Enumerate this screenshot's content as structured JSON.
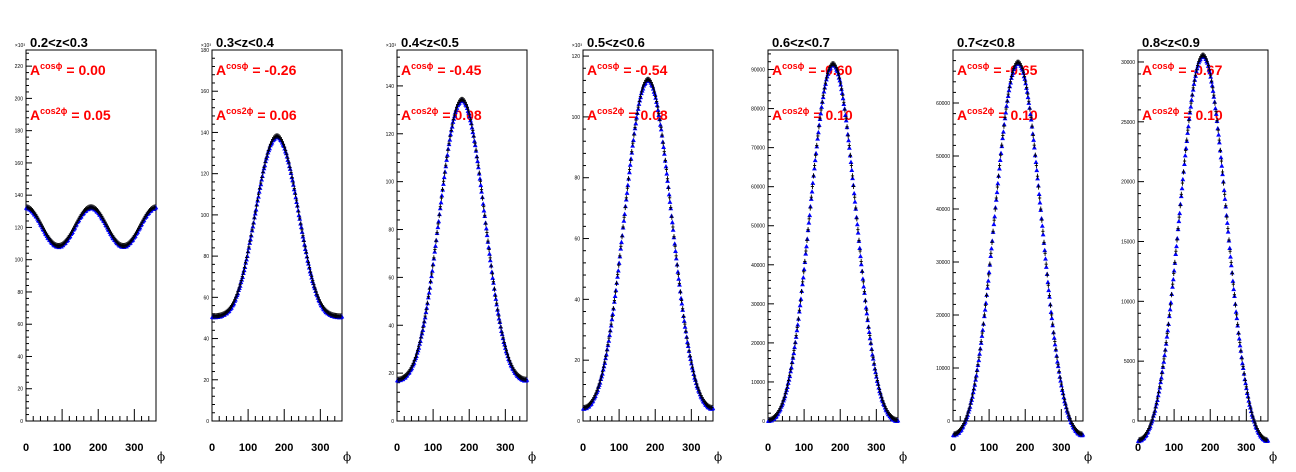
{
  "chart_data": [
    {
      "type": "scatter",
      "title": "0.2<z<0.3",
      "xlabel": "ϕ",
      "xlim": [
        0,
        360
      ],
      "xticks": [
        "0",
        "100",
        "200",
        "300"
      ],
      "ylim": [
        0,
        230
      ],
      "yticks": [
        "0",
        "20",
        "40",
        "60",
        "80",
        "100",
        "120",
        "140",
        "160",
        "180",
        "200",
        "220"
      ],
      "y_multiplier": "×10³",
      "annotations": [
        {
          "name": "A",
          "sup": "cosϕ",
          "value": "= 0.00"
        },
        {
          "name": "A",
          "sup": "cos2ϕ",
          "value": "= 0.05"
        }
      ],
      "model": {
        "baseline": 120,
        "a_cos": 0.0,
        "a_cos2": 0.05
      },
      "series": [
        {
          "name": "",
          "color": "#0000ff",
          "marker": "triangle"
        },
        {
          "name": "",
          "color": "#000000",
          "marker": "cross"
        }
      ]
    },
    {
      "type": "scatter",
      "title": "0.3<z<0.4",
      "xlabel": "ϕ",
      "xlim": [
        0,
        360
      ],
      "xticks": [
        "0",
        "100",
        "200",
        "300"
      ],
      "ylim": [
        0,
        180
      ],
      "yticks": [
        "0",
        "20",
        "40",
        "60",
        "80",
        "100",
        "120",
        "140",
        "160",
        "180"
      ],
      "y_multiplier": "×10³",
      "annotations": [
        {
          "name": "A",
          "sup": "cosϕ",
          "value": "= -0.26"
        },
        {
          "name": "A",
          "sup": "cos2ϕ",
          "value": "= 0.06"
        }
      ],
      "model": {
        "baseline": 84,
        "a_cos": -0.26,
        "a_cos2": 0.06
      },
      "series": [
        {
          "name": "",
          "color": "#0000ff",
          "marker": "triangle"
        },
        {
          "name": "",
          "color": "#000000",
          "marker": "cross"
        }
      ]
    },
    {
      "type": "scatter",
      "title": "0.4<z<0.5",
      "xlabel": "ϕ",
      "xlim": [
        0,
        360
      ],
      "xticks": [
        "0",
        "100",
        "200",
        "300"
      ],
      "ylim": [
        0,
        155
      ],
      "yticks": [
        "0",
        "20",
        "40",
        "60",
        "80",
        "100",
        "120",
        "140"
      ],
      "y_multiplier": "×10³",
      "annotations": [
        {
          "name": "A",
          "sup": "cosϕ",
          "value": "= -0.45"
        },
        {
          "name": "A",
          "sup": "cos2ϕ",
          "value": "= 0.08"
        }
      ],
      "model": {
        "baseline": 65,
        "a_cos": -0.45,
        "a_cos2": 0.08
      },
      "series": [
        {
          "name": "",
          "color": "#0000ff",
          "marker": "triangle"
        },
        {
          "name": "",
          "color": "#000000",
          "marker": "cross"
        }
      ]
    },
    {
      "type": "scatter",
      "title": "0.5<z<0.6",
      "xlabel": "ϕ",
      "xlim": [
        0,
        360
      ],
      "xticks": [
        "0",
        "100",
        "200",
        "300"
      ],
      "ylim": [
        0,
        122
      ],
      "yticks": [
        "0",
        "20",
        "40",
        "60",
        "80",
        "100",
        "120"
      ],
      "y_multiplier": "×10³",
      "annotations": [
        {
          "name": "A",
          "sup": "cosϕ",
          "value": "= -0.54"
        },
        {
          "name": "A",
          "sup": "cos2ϕ",
          "value": "= 0.08"
        }
      ],
      "model": {
        "baseline": 50,
        "a_cos": -0.54,
        "a_cos2": 0.08
      },
      "series": [
        {
          "name": "",
          "color": "#0000ff",
          "marker": "triangle"
        },
        {
          "name": "",
          "color": "#000000",
          "marker": "cross"
        }
      ]
    },
    {
      "type": "scatter",
      "title": "0.6<z<0.7",
      "xlabel": "ϕ",
      "xlim": [
        0,
        360
      ],
      "xticks": [
        "0",
        "100",
        "200",
        "300"
      ],
      "ylim": [
        0,
        95000
      ],
      "yticks": [
        "0",
        "10000",
        "20000",
        "30000",
        "40000",
        "50000",
        "60000",
        "70000",
        "80000",
        "90000"
      ],
      "y_multiplier": "",
      "annotations": [
        {
          "name": "A",
          "sup": "cosϕ",
          "value": "= -0.60"
        },
        {
          "name": "A",
          "sup": "cos2ϕ",
          "value": "= 0.10"
        }
      ],
      "model": {
        "baseline": 38000,
        "a_cos": -0.6,
        "a_cos2": 0.1
      },
      "series": [
        {
          "name": "",
          "color": "#0000ff",
          "marker": "triangle"
        },
        {
          "name": "",
          "color": "#000000",
          "marker": "cross"
        }
      ]
    },
    {
      "type": "scatter",
      "title": "0.7<z<0.8",
      "xlabel": "ϕ",
      "xlim": [
        0,
        360
      ],
      "xticks": [
        "0",
        "100",
        "200",
        "300"
      ],
      "ylim": [
        0,
        70000
      ],
      "yticks": [
        "0",
        "10000",
        "20000",
        "30000",
        "40000",
        "50000",
        "60000"
      ],
      "y_multiplier": "",
      "annotations": [
        {
          "name": "A",
          "sup": "cosϕ",
          "value": "= -0.65"
        },
        {
          "name": "A",
          "sup": "cos2ϕ",
          "value": "= 0.10"
        }
      ],
      "model": {
        "baseline": 27000,
        "a_cos": -0.65,
        "a_cos2": 0.1
      },
      "series": [
        {
          "name": "",
          "color": "#0000ff",
          "marker": "triangle"
        },
        {
          "name": "",
          "color": "#000000",
          "marker": "cross"
        }
      ]
    },
    {
      "type": "scatter",
      "title": "0.8<z<0.9",
      "xlabel": "ϕ",
      "xlim": [
        0,
        360
      ],
      "xticks": [
        "0",
        "100",
        "200",
        "300"
      ],
      "ylim": [
        0,
        31000
      ],
      "yticks": [
        "0",
        "5000",
        "10000",
        "15000",
        "20000",
        "25000",
        "30000"
      ],
      "y_multiplier": "",
      "annotations": [
        {
          "name": "A",
          "sup": "cosϕ",
          "value": "= -0.67"
        },
        {
          "name": "A",
          "sup": "cos2ϕ",
          "value": "= 0.10"
        }
      ],
      "model": {
        "baseline": 12000,
        "a_cos": -0.67,
        "a_cos2": 0.1
      },
      "series": [
        {
          "name": "",
          "color": "#0000ff",
          "marker": "triangle"
        },
        {
          "name": "",
          "color": "#000000",
          "marker": "cross"
        }
      ]
    }
  ]
}
